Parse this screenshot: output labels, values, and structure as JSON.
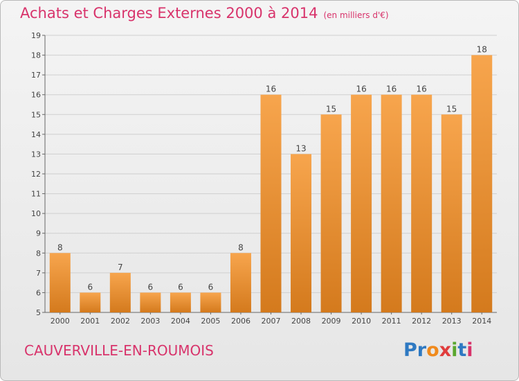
{
  "header": {
    "title": "Achats et Charges Externes 2000 à 2014",
    "subtitle": "(en milliers d'€)"
  },
  "footer": {
    "commune": "CAUVERVILLE-EN-ROUMOIS",
    "brand_letters": [
      {
        "ch": "P",
        "color": "#2e79c2"
      },
      {
        "ch": "r",
        "color": "#2e79c2"
      },
      {
        "ch": "o",
        "color": "#f08a1c"
      },
      {
        "ch": "x",
        "color": "#e03c3c"
      },
      {
        "ch": "i",
        "color": "#5aa72f"
      },
      {
        "ch": "t",
        "color": "#2e79c2"
      },
      {
        "ch": "i",
        "color": "#d8336b"
      }
    ]
  },
  "colors": {
    "bar_light": "#f7a54d",
    "bar_dark": "#d47a1d",
    "title": "#d8336b",
    "grid": "#cfcfcf"
  },
  "chart_data": {
    "type": "bar",
    "title": "Achats et Charges Externes 2000 à 2014",
    "subtitle": "(en milliers d'€)",
    "xlabel": "",
    "ylabel": "",
    "categories": [
      "2000",
      "2001",
      "2002",
      "2003",
      "2004",
      "2005",
      "2006",
      "2007",
      "2008",
      "2009",
      "2010",
      "2011",
      "2012",
      "2013",
      "2014"
    ],
    "values": [
      8,
      6,
      7,
      6,
      6,
      6,
      8,
      16,
      13,
      15,
      16,
      16,
      16,
      15,
      18
    ],
    "ylim": [
      5,
      19
    ],
    "yticks": [
      5,
      6,
      7,
      8,
      9,
      10,
      11,
      12,
      13,
      14,
      15,
      16,
      17,
      18,
      19
    ],
    "grid": true,
    "data_labels": true
  }
}
